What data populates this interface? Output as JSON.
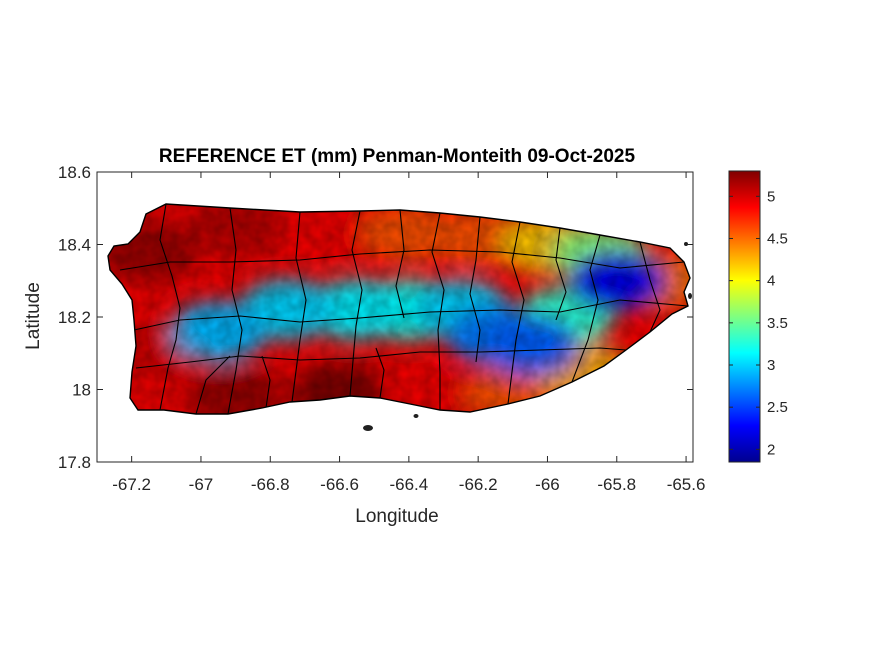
{
  "chart_data": {
    "type": "heatmap",
    "title": "REFERENCE ET (mm) Penman-Monteith 09-Oct-2025",
    "xlabel": "Longitude",
    "ylabel": "Latitude",
    "xlim": [
      -67.3,
      -65.58
    ],
    "ylim": [
      17.8,
      18.6
    ],
    "xticks": [
      -67.2,
      -67,
      -66.8,
      -66.6,
      -66.4,
      -66.2,
      -66,
      -65.8,
      -65.6
    ],
    "xtick_labels": [
      "-67.2",
      "-67",
      "-66.8",
      "-66.6",
      "-66.4",
      "-66.2",
      "-66",
      "-65.8",
      "-65.6"
    ],
    "yticks": [
      17.8,
      18,
      18.2,
      18.4,
      18.6
    ],
    "ytick_labels": [
      "17.8",
      "18",
      "18.2",
      "18.4",
      "18.6"
    ],
    "grid": false,
    "colormap": "jet",
    "colorbar": {
      "range": [
        1.85,
        5.3
      ],
      "ticks": [
        2,
        2.5,
        3,
        3.5,
        4,
        4.5,
        5
      ],
      "tick_labels": [
        "2",
        "2.5",
        "3",
        "3.5",
        "4",
        "4.5",
        "5"
      ]
    },
    "pattern": "High ET (about 5 mm) along the western, northern and southern coasts; low ET (about 2.5–3 mm) across the central mountain range and the eastern interior; minimum near -65.8 lon, 18.3 lat.",
    "zones": [
      {
        "lon": -67.15,
        "lat": 18.38,
        "value": 5.2
      },
      {
        "lon": -66.9,
        "lat": 18.45,
        "value": 5.1
      },
      {
        "lon": -66.6,
        "lat": 18.44,
        "value": 4.9
      },
      {
        "lon": -66.4,
        "lat": 18.43,
        "value": 4.6
      },
      {
        "lon": -66.2,
        "lat": 18.42,
        "value": 4.6
      },
      {
        "lon": -66.0,
        "lat": 18.4,
        "value": 4.2
      },
      {
        "lon": -65.85,
        "lat": 18.37,
        "value": 3.6
      },
      {
        "lon": -65.68,
        "lat": 18.3,
        "value": 4.5
      },
      {
        "lon": -67.15,
        "lat": 18.1,
        "value": 5.0
      },
      {
        "lon": -66.9,
        "lat": 17.98,
        "value": 5.2
      },
      {
        "lon": -66.6,
        "lat": 17.99,
        "value": 5.3
      },
      {
        "lon": -66.35,
        "lat": 17.97,
        "value": 4.9
      },
      {
        "lon": -66.1,
        "lat": 17.99,
        "value": 4.6
      },
      {
        "lon": -65.9,
        "lat": 18.05,
        "value": 4.3
      },
      {
        "lon": -66.95,
        "lat": 18.16,
        "value": 2.9
      },
      {
        "lon": -66.75,
        "lat": 18.22,
        "value": 3.0
      },
      {
        "lon": -66.55,
        "lat": 18.22,
        "value": 3.1
      },
      {
        "lon": -66.4,
        "lat": 18.22,
        "value": 3.2
      },
      {
        "lon": -66.25,
        "lat": 18.22,
        "value": 3.0
      },
      {
        "lon": -66.15,
        "lat": 18.15,
        "value": 2.7
      },
      {
        "lon": -66.05,
        "lat": 18.12,
        "value": 2.6
      },
      {
        "lon": -65.95,
        "lat": 18.2,
        "value": 3.3
      },
      {
        "lon": -65.8,
        "lat": 18.3,
        "value": 2.2
      }
    ]
  }
}
